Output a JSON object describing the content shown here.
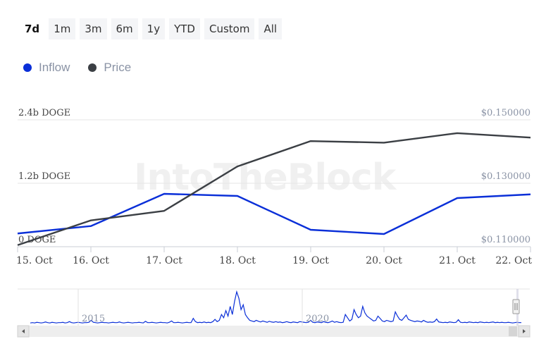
{
  "range_buttons": [
    "7d",
    "1m",
    "3m",
    "6m",
    "1y",
    "YTD",
    "Custom",
    "All"
  ],
  "active_range": "7d",
  "watermark": "IntoTheBlock",
  "colors": {
    "inflow": "#0a2fd8",
    "price": "#3b3f44",
    "grid": "#e6e6e6"
  },
  "chart_data": {
    "type": "line",
    "legend": [
      "Inflow",
      "Price"
    ],
    "x": [
      "15. Oct",
      "16. Oct",
      "17. Oct",
      "18. Oct",
      "19. Oct",
      "20. Oct",
      "21. Oct",
      "22. Oct"
    ],
    "series": [
      {
        "name": "Inflow",
        "axis": "left",
        "values": [
          0.25,
          0.39,
          1.0,
          0.96,
          0.32,
          0.24,
          0.92,
          0.99
        ]
      },
      {
        "name": "Price",
        "axis": "right",
        "values": [
          0.1105,
          0.1183,
          0.1213,
          0.1353,
          0.1433,
          0.1428,
          0.1458,
          0.1444
        ]
      }
    ],
    "y_left": {
      "ticks": [
        "0 DOGE",
        "1.2b DOGE",
        "2.4b DOGE"
      ],
      "values": [
        0,
        1.2,
        2.4
      ],
      "range": [
        0,
        2.4
      ],
      "unit": "b DOGE"
    },
    "y_right": {
      "ticks": [
        "$0.110000",
        "$0.130000",
        "$0.150000"
      ],
      "values": [
        0.11,
        0.13,
        0.15
      ],
      "range": [
        0.11,
        0.15
      ]
    },
    "grid": true,
    "legend_position": "top-left",
    "navigator": {
      "labels": [
        "2015",
        "2020"
      ],
      "series": [
        0.04,
        0.05,
        0.04,
        0.06,
        0.05,
        0.04,
        0.05,
        0.07,
        0.05,
        0.04,
        0.06,
        0.05,
        0.04,
        0.05,
        0.05,
        0.06,
        0.04,
        0.05,
        0.08,
        0.05,
        0.04,
        0.05,
        0.06,
        0.05,
        0.04,
        0.05,
        0.05,
        0.06,
        0.12,
        0.06,
        0.05,
        0.04,
        0.05,
        0.06,
        0.05,
        0.05,
        0.04,
        0.05,
        0.06,
        0.05,
        0.05,
        0.07,
        0.05,
        0.04,
        0.05,
        0.06,
        0.05,
        0.04,
        0.05,
        0.05,
        0.06,
        0.05,
        0.04,
        0.09,
        0.05,
        0.05,
        0.06,
        0.05,
        0.04,
        0.05,
        0.06,
        0.05,
        0.05,
        0.04,
        0.06,
        0.1,
        0.05,
        0.05,
        0.06,
        0.05,
        0.04,
        0.05,
        0.06,
        0.05,
        0.05,
        0.18,
        0.08,
        0.05,
        0.06,
        0.05,
        0.07,
        0.05,
        0.06,
        0.05,
        0.08,
        0.15,
        0.08,
        0.12,
        0.3,
        0.2,
        0.42,
        0.25,
        0.55,
        0.3,
        0.7,
        1.0,
        0.8,
        0.45,
        0.6,
        0.3,
        0.2,
        0.12,
        0.1,
        0.08,
        0.12,
        0.09,
        0.07,
        0.1,
        0.08,
        0.06,
        0.09,
        0.07,
        0.06,
        0.08,
        0.06,
        0.07,
        0.05,
        0.06,
        0.08,
        0.06,
        0.05,
        0.07,
        0.06,
        0.05,
        0.08,
        0.07,
        0.06,
        0.05,
        0.06,
        0.12,
        0.06,
        0.05,
        0.07,
        0.06,
        0.05,
        0.08,
        0.06,
        0.05,
        0.07,
        0.1,
        0.06,
        0.08,
        0.06,
        0.05,
        0.06,
        0.3,
        0.2,
        0.1,
        0.15,
        0.45,
        0.3,
        0.2,
        0.25,
        0.55,
        0.35,
        0.25,
        0.2,
        0.15,
        0.1,
        0.12,
        0.25,
        0.18,
        0.1,
        0.08,
        0.12,
        0.1,
        0.08,
        0.1,
        0.38,
        0.25,
        0.15,
        0.12,
        0.2,
        0.28,
        0.15,
        0.12,
        0.1,
        0.08,
        0.1,
        0.09,
        0.07,
        0.12,
        0.08,
        0.06,
        0.07,
        0.06,
        0.08,
        0.16,
        0.07,
        0.06,
        0.05,
        0.06,
        0.05,
        0.07,
        0.06,
        0.05,
        0.06,
        0.14,
        0.06,
        0.05,
        0.06,
        0.05,
        0.07,
        0.06,
        0.05,
        0.06,
        0.05,
        0.07,
        0.06,
        0.05,
        0.06,
        0.05,
        0.06,
        0.07,
        0.05,
        0.06,
        0.05,
        0.06,
        0.05,
        0.05,
        0.06,
        0.05,
        0.04,
        0.05,
        0.06,
        0.05,
        0.05
      ]
    }
  }
}
